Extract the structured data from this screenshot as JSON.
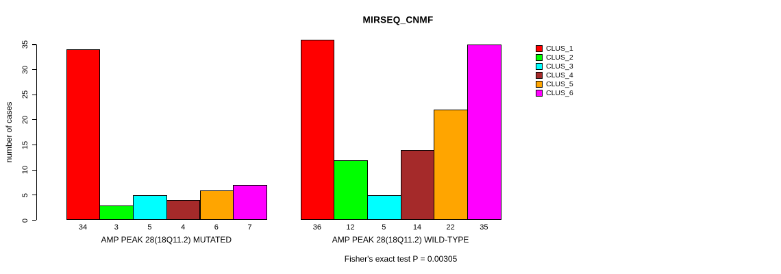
{
  "title": "MIRSEQ_CNMF",
  "y_axis": {
    "label": "number of cases",
    "ticks": [
      0,
      5,
      10,
      15,
      20,
      25,
      30,
      35
    ]
  },
  "footer": "Fisher's exact test P = 0.00305",
  "colors": {
    "foreground": "#000000",
    "background": "#ffffff",
    "clusters": [
      "#FF0000",
      "#00FF00",
      "#00FFFF",
      "#A52A2A",
      "#FFA500",
      "#FF00FF"
    ]
  },
  "legend": {
    "position": "right",
    "entries": [
      {
        "label": "CLUS_1",
        "color": "#FF0000"
      },
      {
        "label": "CLUS_2",
        "color": "#00FF00"
      },
      {
        "label": "CLUS_3",
        "color": "#00FFFF"
      },
      {
        "label": "CLUS_4",
        "color": "#A52A2A"
      },
      {
        "label": "CLUS_5",
        "color": "#FFA500"
      },
      {
        "label": "CLUS_6",
        "color": "#FF00FF"
      }
    ]
  },
  "chart_data": [
    {
      "type": "bar",
      "panel_id": "mutated",
      "title": "MIRSEQ_CNMF",
      "xlabel": "AMP PEAK 28(18Q11.2) MUTATED",
      "ylabel": "number of cases",
      "categories": [
        "CLUS_1",
        "CLUS_2",
        "CLUS_3",
        "CLUS_4",
        "CLUS_5",
        "CLUS_6"
      ],
      "values": [
        34,
        3,
        5,
        4,
        6,
        7
      ],
      "bar_value_labels": [
        "34",
        "3",
        "5",
        "4",
        "6",
        "7"
      ],
      "colors": [
        "#FF0000",
        "#00FF00",
        "#00FFFF",
        "#A52A2A",
        "#FFA500",
        "#FF00FF"
      ],
      "ylim": [
        0,
        36
      ],
      "yticks": [
        0,
        5,
        10,
        15,
        20,
        25,
        30,
        35
      ],
      "grid": false,
      "legend_position": "right"
    },
    {
      "type": "bar",
      "panel_id": "wild-type",
      "title": "MIRSEQ_CNMF",
      "xlabel": "AMP PEAK 28(18Q11.2) WILD-TYPE",
      "ylabel": "number of cases",
      "categories": [
        "CLUS_1",
        "CLUS_2",
        "CLUS_3",
        "CLUS_4",
        "CLUS_5",
        "CLUS_6"
      ],
      "values": [
        36,
        12,
        5,
        14,
        22,
        35
      ],
      "bar_value_labels": [
        "36",
        "12",
        "5",
        "14",
        "22",
        "35"
      ],
      "colors": [
        "#FF0000",
        "#00FF00",
        "#00FFFF",
        "#A52A2A",
        "#FFA500",
        "#FF00FF"
      ],
      "ylim": [
        0,
        36
      ],
      "yticks": [
        0,
        5,
        10,
        15,
        20,
        25,
        30,
        35
      ],
      "grid": false,
      "legend_position": "right"
    }
  ]
}
